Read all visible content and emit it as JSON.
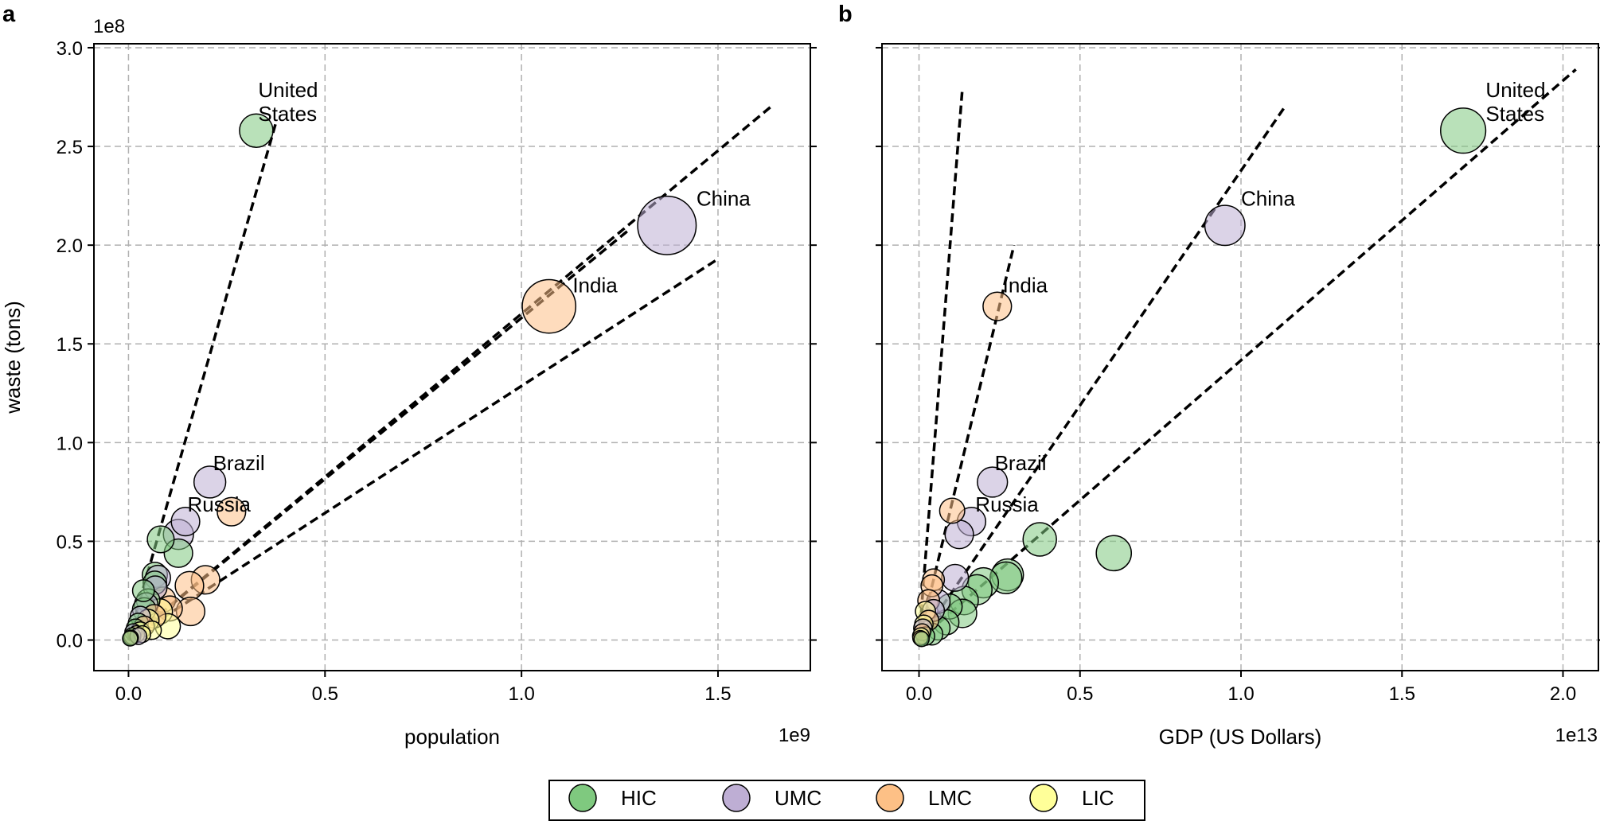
{
  "colors": {
    "HIC": "#7fc97f",
    "UMC": "#beaed4",
    "LMC": "#fdc086",
    "LIC": "#ffff99"
  },
  "legend": {
    "items": [
      {
        "key": "HIC",
        "label": "HIC"
      },
      {
        "key": "UMC",
        "label": "UMC"
      },
      {
        "key": "LMC",
        "label": "LMC"
      },
      {
        "key": "LIC",
        "label": "LIC"
      }
    ]
  },
  "chart_data": [
    {
      "type": "scatter",
      "panel_label": "a",
      "title": "",
      "xlabel": "population",
      "ylabel": "waste (tons)",
      "x_multiplier": "1e9",
      "y_multiplier": "1e8",
      "xlim": [
        -0.088,
        1.735
      ],
      "ylim": [
        -0.155,
        3.02
      ],
      "xticks": [
        0.0,
        0.5,
        1.0,
        1.5
      ],
      "yticks": [
        0.0,
        0.5,
        1.0,
        1.5,
        2.0,
        2.5,
        3.0
      ],
      "xtick_labels": [
        "0.0",
        "0.5",
        "1.0",
        "1.5"
      ],
      "ytick_labels": [
        "0.0",
        "0.5",
        "1.0",
        "1.5",
        "2.0",
        "2.5",
        "3.0"
      ],
      "grid": true,
      "annotations": [
        {
          "lines": [
            "United",
            "States"
          ],
          "x": 0.33,
          "y": 2.75
        },
        {
          "lines": [
            "China"
          ],
          "x": 1.445,
          "y": 2.2
        },
        {
          "lines": [
            "India"
          ],
          "x": 1.13,
          "y": 1.76
        },
        {
          "lines": [
            "Brazil"
          ],
          "x": 0.215,
          "y": 0.86
        },
        {
          "lines": [
            "Russia"
          ],
          "x": 0.15,
          "y": 0.65
        }
      ],
      "trend_lines": [
        {
          "x": [
            0.0,
            0.375
          ],
          "y": [
            0.0,
            2.62
          ]
        },
        {
          "x": [
            0.0,
            1.64
          ],
          "y": [
            0.0,
            2.71
          ]
        },
        {
          "x": [
            0.0,
            1.275
          ],
          "y": [
            0.0,
            2.08
          ]
        },
        {
          "x": [
            0.0,
            1.5
          ],
          "y": [
            0.0,
            1.93
          ]
        }
      ],
      "points": [
        {
          "x": 0.325,
          "y": 2.58,
          "s": 1.0,
          "c": "HIC"
        },
        {
          "x": 1.37,
          "y": 2.1,
          "s": 1.75,
          "c": "UMC"
        },
        {
          "x": 1.07,
          "y": 1.69,
          "s": 1.6,
          "c": "LMC"
        },
        {
          "x": 0.207,
          "y": 0.8,
          "s": 0.95,
          "c": "UMC"
        },
        {
          "x": 0.262,
          "y": 0.65,
          "s": 0.85,
          "c": "LMC"
        },
        {
          "x": 0.145,
          "y": 0.6,
          "s": 0.85,
          "c": "UMC"
        },
        {
          "x": 0.127,
          "y": 0.535,
          "s": 0.9,
          "c": "UMC"
        },
        {
          "x": 0.082,
          "y": 0.51,
          "s": 0.8,
          "c": "HIC"
        },
        {
          "x": 0.127,
          "y": 0.44,
          "s": 0.85,
          "c": "HIC"
        },
        {
          "x": 0.067,
          "y": 0.33,
          "s": 0.75,
          "c": "HIC"
        },
        {
          "x": 0.075,
          "y": 0.315,
          "s": 0.75,
          "c": "UMC"
        },
        {
          "x": 0.067,
          "y": 0.29,
          "s": 0.7,
          "c": "HIC"
        },
        {
          "x": 0.068,
          "y": 0.265,
          "s": 0.7,
          "c": "UMC"
        },
        {
          "x": 0.038,
          "y": 0.25,
          "s": 0.65,
          "c": "HIC"
        },
        {
          "x": 0.196,
          "y": 0.305,
          "s": 0.85,
          "c": "LMC"
        },
        {
          "x": 0.155,
          "y": 0.275,
          "s": 0.85,
          "c": "LMC"
        },
        {
          "x": 0.088,
          "y": 0.205,
          "s": 0.75,
          "c": "LMC"
        },
        {
          "x": 0.05,
          "y": 0.2,
          "s": 0.7,
          "c": "HIC"
        },
        {
          "x": 0.045,
          "y": 0.18,
          "s": 0.7,
          "c": "UMC"
        },
        {
          "x": 0.105,
          "y": 0.16,
          "s": 0.75,
          "c": "LMC"
        },
        {
          "x": 0.08,
          "y": 0.145,
          "s": 0.75,
          "c": "LIC"
        },
        {
          "x": 0.04,
          "y": 0.155,
          "s": 0.7,
          "c": "HIC"
        },
        {
          "x": 0.158,
          "y": 0.145,
          "s": 0.85,
          "c": "LMC"
        },
        {
          "x": 0.065,
          "y": 0.12,
          "s": 0.7,
          "c": "LMC"
        },
        {
          "x": 0.1,
          "y": 0.07,
          "s": 0.75,
          "c": "LIC"
        },
        {
          "x": 0.03,
          "y": 0.12,
          "s": 0.6,
          "c": "UMC"
        },
        {
          "x": 0.05,
          "y": 0.1,
          "s": 0.65,
          "c": "LIC"
        },
        {
          "x": 0.025,
          "y": 0.085,
          "s": 0.6,
          "c": "HIC"
        },
        {
          "x": 0.04,
          "y": 0.07,
          "s": 0.6,
          "c": "LMC"
        },
        {
          "x": 0.018,
          "y": 0.06,
          "s": 0.55,
          "c": "HIC"
        },
        {
          "x": 0.03,
          "y": 0.045,
          "s": 0.55,
          "c": "LIC"
        },
        {
          "x": 0.012,
          "y": 0.04,
          "s": 0.5,
          "c": "UMC"
        },
        {
          "x": 0.02,
          "y": 0.03,
          "s": 0.5,
          "c": "LIC"
        },
        {
          "x": 0.01,
          "y": 0.02,
          "s": 0.5,
          "c": "HIC"
        },
        {
          "x": 0.006,
          "y": 0.012,
          "s": 0.45,
          "c": "LMC"
        },
        {
          "x": 0.004,
          "y": 0.008,
          "s": 0.45,
          "c": "HIC"
        },
        {
          "x": 0.035,
          "y": 0.03,
          "s": 0.5,
          "c": "LIC"
        },
        {
          "x": 0.06,
          "y": 0.05,
          "s": 0.55,
          "c": "LIC"
        },
        {
          "x": 0.025,
          "y": 0.02,
          "s": 0.5,
          "c": "UMC"
        }
      ]
    },
    {
      "type": "scatter",
      "panel_label": "b",
      "title": "",
      "xlabel": "GDP (US Dollars)",
      "ylabel": "",
      "x_multiplier": "1e13",
      "y_multiplier": "",
      "xlim": [
        -0.115,
        2.11
      ],
      "ylim": [
        -0.155,
        3.02
      ],
      "xticks": [
        0.0,
        0.5,
        1.0,
        1.5,
        2.0
      ],
      "yticks": [
        0.0,
        0.5,
        1.0,
        1.5,
        2.0,
        2.5,
        3.0
      ],
      "xtick_labels": [
        "0.0",
        "0.5",
        "1.0",
        "1.5",
        "2.0"
      ],
      "ytick_labels": [],
      "grid": true,
      "annotations": [
        {
          "lines": [
            "United",
            "States"
          ],
          "x": 1.76,
          "y": 2.75
        },
        {
          "lines": [
            "China"
          ],
          "x": 1.0,
          "y": 2.2
        },
        {
          "lines": [
            "India"
          ],
          "x": 0.26,
          "y": 1.76
        },
        {
          "lines": [
            "Brazil"
          ],
          "x": 0.235,
          "y": 0.86
        },
        {
          "lines": [
            "Russia"
          ],
          "x": 0.175,
          "y": 0.65
        }
      ],
      "trend_lines": [
        {
          "x": [
            0.0,
            0.135
          ],
          "y": [
            0.0,
            2.8
          ]
        },
        {
          "x": [
            0.0,
            0.295
          ],
          "y": [
            0.0,
            2.0
          ]
        },
        {
          "x": [
            0.0,
            1.14
          ],
          "y": [
            0.0,
            2.71
          ]
        },
        {
          "x": [
            0.0,
            2.04
          ],
          "y": [
            0.0,
            2.89
          ]
        }
      ],
      "points": [
        {
          "x": 1.69,
          "y": 2.58,
          "s": 1.35,
          "c": "HIC"
        },
        {
          "x": 0.95,
          "y": 2.1,
          "s": 1.2,
          "c": "UMC"
        },
        {
          "x": 0.243,
          "y": 1.69,
          "s": 0.85,
          "c": "LMC"
        },
        {
          "x": 0.228,
          "y": 0.8,
          "s": 0.9,
          "c": "UMC"
        },
        {
          "x": 0.103,
          "y": 0.655,
          "s": 0.75,
          "c": "LMC"
        },
        {
          "x": 0.163,
          "y": 0.6,
          "s": 0.85,
          "c": "UMC"
        },
        {
          "x": 0.125,
          "y": 0.535,
          "s": 0.85,
          "c": "UMC"
        },
        {
          "x": 0.375,
          "y": 0.51,
          "s": 1.0,
          "c": "HIC"
        },
        {
          "x": 0.605,
          "y": 0.44,
          "s": 1.05,
          "c": "HIC"
        },
        {
          "x": 0.275,
          "y": 0.33,
          "s": 0.95,
          "c": "HIC"
        },
        {
          "x": 0.27,
          "y": 0.315,
          "s": 0.95,
          "c": "HIC"
        },
        {
          "x": 0.112,
          "y": 0.315,
          "s": 0.8,
          "c": "UMC"
        },
        {
          "x": 0.2,
          "y": 0.29,
          "s": 0.9,
          "c": "HIC"
        },
        {
          "x": 0.045,
          "y": 0.305,
          "s": 0.65,
          "c": "LMC"
        },
        {
          "x": 0.18,
          "y": 0.255,
          "s": 0.9,
          "c": "HIC"
        },
        {
          "x": 0.04,
          "y": 0.275,
          "s": 0.65,
          "c": "LMC"
        },
        {
          "x": 0.14,
          "y": 0.2,
          "s": 0.85,
          "c": "HIC"
        },
        {
          "x": 0.06,
          "y": 0.195,
          "s": 0.7,
          "c": "UMC"
        },
        {
          "x": 0.03,
          "y": 0.2,
          "s": 0.65,
          "c": "LMC"
        },
        {
          "x": 0.095,
          "y": 0.17,
          "s": 0.75,
          "c": "HIC"
        },
        {
          "x": 0.135,
          "y": 0.135,
          "s": 0.85,
          "c": "HIC"
        },
        {
          "x": 0.045,
          "y": 0.15,
          "s": 0.65,
          "c": "UMC"
        },
        {
          "x": 0.02,
          "y": 0.145,
          "s": 0.6,
          "c": "LIC"
        },
        {
          "x": 0.085,
          "y": 0.09,
          "s": 0.75,
          "c": "HIC"
        },
        {
          "x": 0.03,
          "y": 0.1,
          "s": 0.6,
          "c": "LMC"
        },
        {
          "x": 0.06,
          "y": 0.06,
          "s": 0.7,
          "c": "HIC"
        },
        {
          "x": 0.015,
          "y": 0.08,
          "s": 0.55,
          "c": "LIC"
        },
        {
          "x": 0.04,
          "y": 0.03,
          "s": 0.65,
          "c": "HIC"
        },
        {
          "x": 0.012,
          "y": 0.06,
          "s": 0.55,
          "c": "UMC"
        },
        {
          "x": 0.01,
          "y": 0.04,
          "s": 0.5,
          "c": "LMC"
        },
        {
          "x": 0.02,
          "y": 0.02,
          "s": 0.55,
          "c": "HIC"
        },
        {
          "x": 0.006,
          "y": 0.02,
          "s": 0.5,
          "c": "LIC"
        },
        {
          "x": 0.004,
          "y": 0.01,
          "s": 0.45,
          "c": "LMC"
        },
        {
          "x": 0.008,
          "y": 0.005,
          "s": 0.45,
          "c": "HIC"
        }
      ]
    }
  ]
}
